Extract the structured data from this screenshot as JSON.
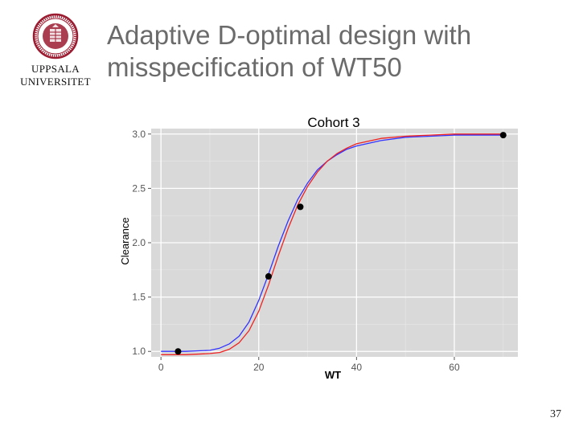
{
  "logo": {
    "line1": "UPPSALA",
    "line2": "UNIVERSITET",
    "seal_color": "#9b1b30"
  },
  "slide": {
    "title_line1": "Adaptive D-optimal design with",
    "title_line2": "misspecification of WT50",
    "page_number": "37"
  },
  "chart_data": {
    "type": "line",
    "title": "Cohort 3",
    "xlabel": "WT",
    "ylabel": "Clearance",
    "xlim": [
      -2,
      73
    ],
    "ylim": [
      0.95,
      3.05
    ],
    "xticks": [
      0,
      20,
      40,
      60
    ],
    "yticks": [
      1.0,
      1.5,
      2.0,
      2.5,
      3.0
    ],
    "ytick_labels": [
      "1.0",
      "1.5",
      "2.0",
      "2.5",
      "3.0"
    ],
    "grid": true,
    "panel_background": "#d9d9d9",
    "series": [
      {
        "color": "#3333ff",
        "x": [
          0,
          5,
          10,
          12,
          14,
          16,
          18,
          20,
          22,
          24,
          26,
          28,
          30,
          32,
          34,
          36,
          38,
          40,
          45,
          50,
          55,
          60,
          65,
          70
        ],
        "y": [
          1.0,
          1.0,
          1.01,
          1.03,
          1.07,
          1.14,
          1.27,
          1.47,
          1.71,
          1.97,
          2.2,
          2.4,
          2.55,
          2.67,
          2.75,
          2.81,
          2.86,
          2.89,
          2.94,
          2.97,
          2.98,
          2.99,
          2.99,
          2.99
        ]
      },
      {
        "color": "#ee2222",
        "x": [
          0,
          5,
          10,
          12,
          14,
          16,
          18,
          20,
          22,
          24,
          26,
          28,
          30,
          32,
          34,
          36,
          38,
          40,
          45,
          50,
          55,
          60,
          65,
          70
        ],
        "y": [
          0.97,
          0.97,
          0.98,
          0.99,
          1.02,
          1.08,
          1.19,
          1.37,
          1.61,
          1.88,
          2.13,
          2.35,
          2.52,
          2.65,
          2.75,
          2.82,
          2.87,
          2.91,
          2.96,
          2.98,
          2.99,
          3.0,
          3.0,
          3.0
        ]
      }
    ],
    "points": {
      "x": [
        3.5,
        22,
        28.5,
        70
      ],
      "y": [
        1.0,
        1.69,
        2.33,
        2.99
      ],
      "color": "#000000"
    }
  }
}
